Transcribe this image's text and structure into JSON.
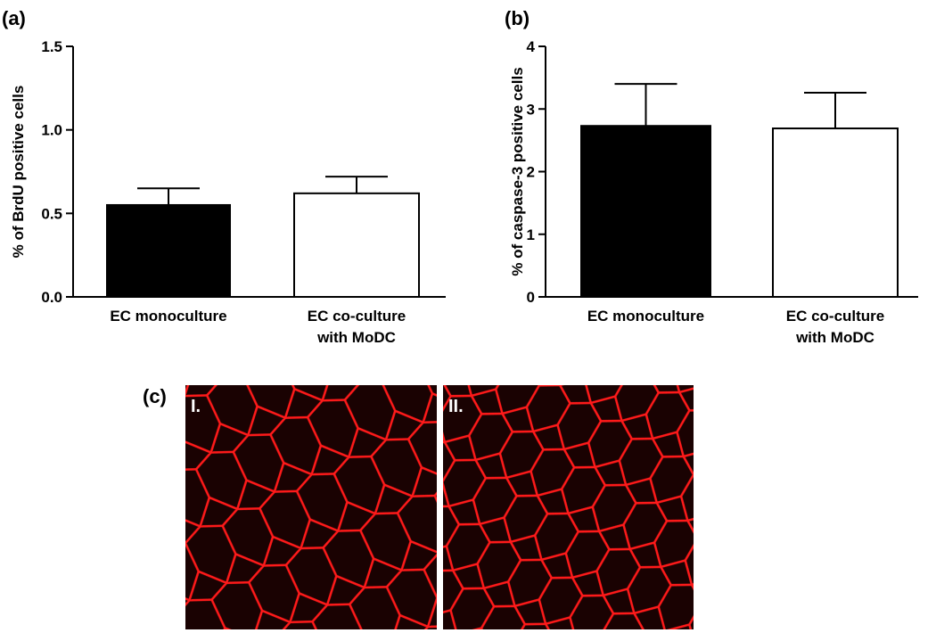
{
  "chart_data": [
    {
      "type": "bar",
      "panel_label": "(a)",
      "ylabel": "% of BrdU positive cells",
      "categories": [
        "EC monoculture",
        "EC co-culture\nwith MoDC"
      ],
      "values": [
        0.55,
        0.62
      ],
      "errors": [
        0.1,
        0.1
      ],
      "colors": [
        "#000000",
        "#ffffff"
      ],
      "ylim": [
        0,
        1.5
      ],
      "yticks": [
        {
          "value": 0,
          "label": "0.0"
        },
        0.5,
        {
          "value": 1,
          "label": "1.0"
        },
        1.5
      ]
    },
    {
      "type": "bar",
      "panel_label": "(b)",
      "ylabel": "% of caspase-3 positive cells",
      "categories": [
        "EC monoculture",
        "EC co-culture\nwith MoDC"
      ],
      "values": [
        2.73,
        2.69
      ],
      "errors": [
        0.67,
        0.57
      ],
      "colors": [
        "#000000",
        "#ffffff"
      ],
      "ylim": [
        0,
        4
      ],
      "yticks": [
        0,
        1,
        2,
        3,
        4
      ]
    }
  ],
  "figure_c": {
    "label": "(c)",
    "images": [
      "I.",
      "II."
    ]
  }
}
